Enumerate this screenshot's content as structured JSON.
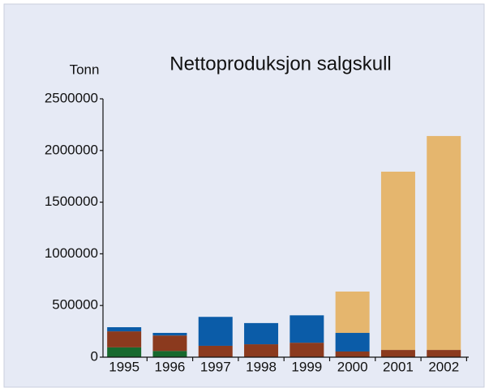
{
  "chart_data": {
    "type": "stacked_bar",
    "title": "Nettoproduksjon salgskull",
    "y_label": "Tonn",
    "categories": [
      "1995",
      "1996",
      "1997",
      "1998",
      "1999",
      "2000",
      "2001",
      "2002"
    ],
    "series": [
      {
        "color": "#17692e",
        "values": [
          95000,
          60000,
          0,
          0,
          0,
          0,
          0,
          0
        ]
      },
      {
        "color": "#8b3a1e",
        "values": [
          155000,
          150000,
          110000,
          125000,
          140000,
          55000,
          70000,
          70000
        ]
      },
      {
        "color": "#0b5ca8",
        "values": [
          40000,
          25000,
          280000,
          205000,
          265000,
          180000,
          0,
          0
        ]
      },
      {
        "color": "#e5b66e",
        "values": [
          0,
          0,
          0,
          0,
          0,
          400000,
          1725000,
          2070000
        ]
      }
    ],
    "ylim": [
      0,
      2500000
    ],
    "yticks": [
      0,
      500000,
      1000000,
      1500000,
      2000000,
      2500000
    ],
    "grid": false
  }
}
